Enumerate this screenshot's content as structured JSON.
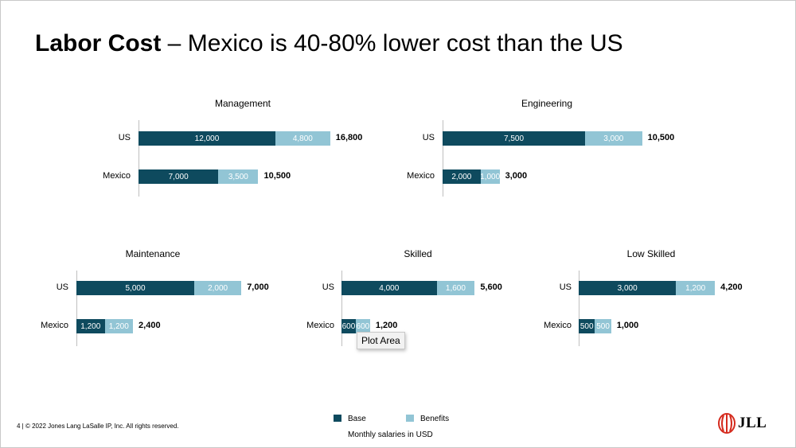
{
  "slide": {
    "title_bold": "Labor Cost",
    "title_rest": " – Mexico is 40-80% lower cost than the US",
    "footer": "4  |  © 2022 Jones Lang LaSalle IP, Inc. All rights reserved.",
    "tooltip": "Plot Area",
    "logo_text": "JLL"
  },
  "legend": {
    "items": [
      {
        "name": "Base",
        "color": "#0e4a5e"
      },
      {
        "name": "Benefits",
        "color": "#92c5d5"
      }
    ],
    "note": "Monthly salaries in USD"
  },
  "chart_data": [
    {
      "type": "bar",
      "orientation": "horizontal",
      "stacked": true,
      "title": "Management",
      "categories": [
        "US",
        "Mexico"
      ],
      "series": [
        {
          "name": "Base",
          "values": [
            12000,
            7000
          ]
        },
        {
          "name": "Benefits",
          "values": [
            4800,
            3500
          ]
        }
      ],
      "totals": [
        16800,
        10500
      ],
      "base_labels": [
        "12,000",
        "7,000"
      ],
      "benefit_labels": [
        "4,800",
        "3,500"
      ],
      "total_labels": [
        "16,800",
        "10,500"
      ]
    },
    {
      "type": "bar",
      "orientation": "horizontal",
      "stacked": true,
      "title": "Engineering",
      "categories": [
        "US",
        "Mexico"
      ],
      "series": [
        {
          "name": "Base",
          "values": [
            7500,
            2000
          ]
        },
        {
          "name": "Benefits",
          "values": [
            3000,
            1000
          ]
        }
      ],
      "totals": [
        10500,
        3000
      ],
      "base_labels": [
        "7,500",
        "2,000"
      ],
      "benefit_labels": [
        "3,000",
        "1,000"
      ],
      "total_labels": [
        "10,500",
        "3,000"
      ]
    },
    {
      "type": "bar",
      "orientation": "horizontal",
      "stacked": true,
      "title": "Maintenance",
      "categories": [
        "US",
        "Mexico"
      ],
      "series": [
        {
          "name": "Base",
          "values": [
            5000,
            1200
          ]
        },
        {
          "name": "Benefits",
          "values": [
            2000,
            1200
          ]
        }
      ],
      "totals": [
        7000,
        2400
      ],
      "base_labels": [
        "5,000",
        "1,200"
      ],
      "benefit_labels": [
        "2,000",
        "1,200"
      ],
      "total_labels": [
        "7,000",
        "2,400"
      ]
    },
    {
      "type": "bar",
      "orientation": "horizontal",
      "stacked": true,
      "title": "Skilled",
      "categories": [
        "US",
        "Mexico"
      ],
      "series": [
        {
          "name": "Base",
          "values": [
            4000,
            600
          ]
        },
        {
          "name": "Benefits",
          "values": [
            1600,
            600
          ]
        }
      ],
      "totals": [
        5600,
        1200
      ],
      "base_labels": [
        "4,000",
        "600"
      ],
      "benefit_labels": [
        "1,600",
        "600"
      ],
      "total_labels": [
        "5,600",
        "1,200"
      ]
    },
    {
      "type": "bar",
      "orientation": "horizontal",
      "stacked": true,
      "title": "Low Skilled",
      "categories": [
        "US",
        "Mexico"
      ],
      "series": [
        {
          "name": "Base",
          "values": [
            3000,
            500
          ]
        },
        {
          "name": "Benefits",
          "values": [
            1200,
            500
          ]
        }
      ],
      "totals": [
        4200,
        1000
      ],
      "base_labels": [
        "3,000",
        "500"
      ],
      "benefit_labels": [
        "1,200",
        "500"
      ],
      "total_labels": [
        "4,200",
        "1,000"
      ]
    }
  ]
}
